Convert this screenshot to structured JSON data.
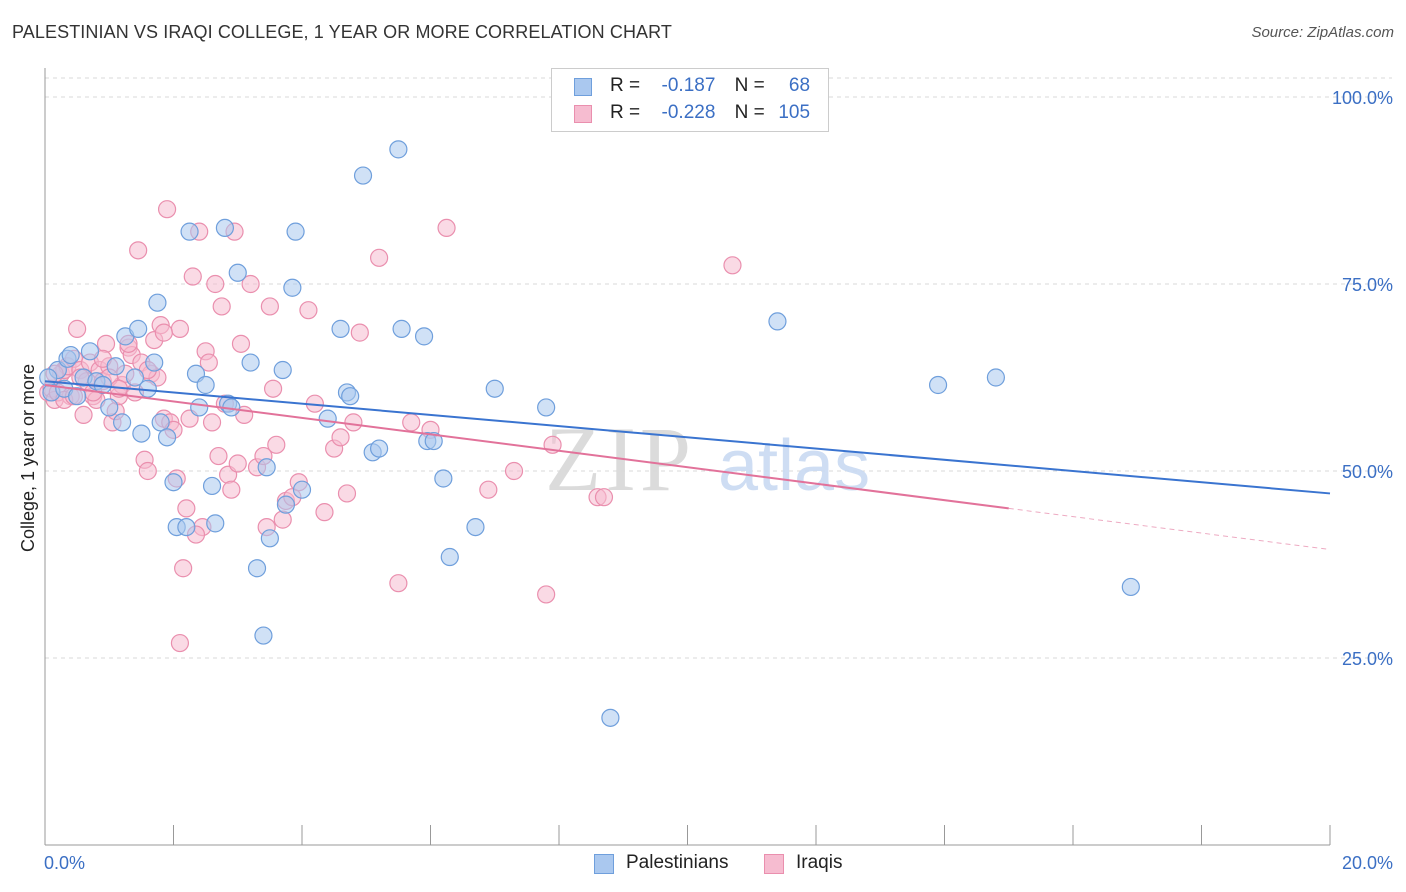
{
  "header": {
    "title": "PALESTINIAN VS IRAQI COLLEGE, 1 YEAR OR MORE CORRELATION CHART",
    "source": "Source: ZipAtlas.com"
  },
  "legend_top": {
    "rows": [
      {
        "r_label": "R =",
        "r_value": "-0.187",
        "n_label": "N =",
        "n_value": "68"
      },
      {
        "r_label": "R =",
        "r_value": "-0.228",
        "n_label": "N =",
        "n_value": "105"
      }
    ]
  },
  "legend_bottom": {
    "items": [
      {
        "label": "Palestinians"
      },
      {
        "label": "Iraqis"
      }
    ]
  },
  "watermark": {
    "part1": "ZIP",
    "part2": "atlas"
  },
  "colors": {
    "blue_fill": "#aac8ef",
    "blue_stroke": "#6f9fdc",
    "blue_line": "#3a74d0",
    "pink_fill": "#f6bcd0",
    "pink_stroke": "#ea8fae",
    "pink_line": "#e2729a",
    "tick_text": "#3b6fc4",
    "grid": "#d8d8d8"
  },
  "chart_data": {
    "type": "scatter",
    "title": "PALESTINIAN VS IRAQI COLLEGE, 1 YEAR OR MORE CORRELATION CHART",
    "xlabel": "",
    "ylabel": "College, 1 year or more",
    "xlim": [
      0,
      20
    ],
    "ylim": [
      0,
      102
    ],
    "x_tick_labels": [
      {
        "value": 0,
        "label": "0.0%"
      },
      {
        "value": 20,
        "label": "20.0%"
      }
    ],
    "y_tick_labels": [
      {
        "value": 25,
        "label": "25.0%"
      },
      {
        "value": 50,
        "label": "50.0%"
      },
      {
        "value": 75,
        "label": "75.0%"
      },
      {
        "value": 100,
        "label": "100.0%"
      }
    ],
    "grid": true,
    "legend_position": "top-center",
    "series": [
      {
        "name": "Palestinians",
        "r": -0.187,
        "n": 68,
        "trend": {
          "x0": 0,
          "y0": 62.0,
          "x1": 20,
          "y1": 47.0
        },
        "points": [
          [
            0.1,
            60.5
          ],
          [
            0.2,
            63.5
          ],
          [
            0.3,
            61.0
          ],
          [
            0.35,
            65.0
          ],
          [
            0.4,
            65.5
          ],
          [
            0.5,
            60.0
          ],
          [
            0.6,
            62.5
          ],
          [
            0.7,
            66.0
          ],
          [
            0.8,
            62.0
          ],
          [
            0.9,
            61.5
          ],
          [
            1.0,
            58.5
          ],
          [
            1.1,
            64.0
          ],
          [
            1.2,
            56.5
          ],
          [
            1.25,
            68.0
          ],
          [
            1.4,
            62.5
          ],
          [
            1.45,
            69.0
          ],
          [
            1.5,
            55.0
          ],
          [
            1.6,
            61.0
          ],
          [
            1.7,
            64.5
          ],
          [
            1.75,
            72.5
          ],
          [
            1.8,
            56.5
          ],
          [
            1.9,
            54.5
          ],
          [
            2.0,
            48.5
          ],
          [
            2.05,
            42.5
          ],
          [
            2.2,
            42.5
          ],
          [
            2.25,
            82.0
          ],
          [
            2.35,
            63.0
          ],
          [
            2.4,
            58.5
          ],
          [
            2.5,
            61.5
          ],
          [
            2.6,
            48.0
          ],
          [
            2.65,
            43.0
          ],
          [
            2.8,
            82.5
          ],
          [
            2.85,
            59.0
          ],
          [
            2.9,
            58.5
          ],
          [
            3.0,
            76.5
          ],
          [
            3.2,
            64.5
          ],
          [
            3.3,
            37.0
          ],
          [
            3.4,
            28.0
          ],
          [
            3.45,
            50.5
          ],
          [
            3.5,
            41.0
          ],
          [
            3.7,
            63.5
          ],
          [
            3.75,
            45.5
          ],
          [
            3.85,
            74.5
          ],
          [
            3.9,
            82.0
          ],
          [
            4.0,
            47.5
          ],
          [
            4.4,
            57.0
          ],
          [
            4.6,
            69.0
          ],
          [
            4.7,
            60.5
          ],
          [
            4.75,
            60.0
          ],
          [
            4.95,
            89.5
          ],
          [
            5.1,
            52.5
          ],
          [
            5.2,
            53.0
          ],
          [
            5.5,
            93.0
          ],
          [
            5.55,
            69.0
          ],
          [
            5.9,
            68.0
          ],
          [
            5.95,
            54.0
          ],
          [
            6.05,
            54.0
          ],
          [
            6.2,
            49.0
          ],
          [
            6.3,
            38.5
          ],
          [
            6.7,
            42.5
          ],
          [
            7.0,
            61.0
          ],
          [
            7.8,
            58.5
          ],
          [
            8.8,
            17.0
          ],
          [
            11.4,
            70.0
          ],
          [
            13.9,
            61.5
          ],
          [
            14.8,
            62.5
          ],
          [
            16.9,
            34.5
          ],
          [
            0.05,
            62.5
          ]
        ]
      },
      {
        "name": "Iraqis",
        "r": -0.228,
        "n": 105,
        "trend": {
          "x0": 0,
          "y0": 61.5,
          "x1": 15.0,
          "y1": 45.0
        },
        "trend_extension": {
          "x0": 15.0,
          "y0": 45.0,
          "x1": 20,
          "y1": 39.5
        },
        "points": [
          [
            0.05,
            60.5
          ],
          [
            0.1,
            61.0
          ],
          [
            0.15,
            59.5
          ],
          [
            0.2,
            60.5
          ],
          [
            0.25,
            63.0
          ],
          [
            0.3,
            63.5
          ],
          [
            0.35,
            64.0
          ],
          [
            0.4,
            60.0
          ],
          [
            0.45,
            65.0
          ],
          [
            0.5,
            69.0
          ],
          [
            0.55,
            63.5
          ],
          [
            0.6,
            57.5
          ],
          [
            0.65,
            62.0
          ],
          [
            0.7,
            64.5
          ],
          [
            0.75,
            60.0
          ],
          [
            0.8,
            59.5
          ],
          [
            0.85,
            63.5
          ],
          [
            0.9,
            62.0
          ],
          [
            0.95,
            67.0
          ],
          [
            1.0,
            64.0
          ],
          [
            1.05,
            56.5
          ],
          [
            1.1,
            58.0
          ],
          [
            1.15,
            60.0
          ],
          [
            1.2,
            61.5
          ],
          [
            1.25,
            63.0
          ],
          [
            1.3,
            66.5
          ],
          [
            1.35,
            65.5
          ],
          [
            1.4,
            60.5
          ],
          [
            1.45,
            79.5
          ],
          [
            1.5,
            64.5
          ],
          [
            1.55,
            51.5
          ],
          [
            1.6,
            50.0
          ],
          [
            1.65,
            63.0
          ],
          [
            1.7,
            67.5
          ],
          [
            1.75,
            62.5
          ],
          [
            1.8,
            69.5
          ],
          [
            1.85,
            57.0
          ],
          [
            1.9,
            85.0
          ],
          [
            1.95,
            56.5
          ],
          [
            2.0,
            55.5
          ],
          [
            2.05,
            49.0
          ],
          [
            2.1,
            69.0
          ],
          [
            2.15,
            37.0
          ],
          [
            2.2,
            45.0
          ],
          [
            2.25,
            57.0
          ],
          [
            2.3,
            76.0
          ],
          [
            2.4,
            82.0
          ],
          [
            2.45,
            42.5
          ],
          [
            2.5,
            66.0
          ],
          [
            2.55,
            64.5
          ],
          [
            2.6,
            56.5
          ],
          [
            2.65,
            75.0
          ],
          [
            2.7,
            52.0
          ],
          [
            2.75,
            72.0
          ],
          [
            2.85,
            49.5
          ],
          [
            2.9,
            47.5
          ],
          [
            2.95,
            82.0
          ],
          [
            3.0,
            51.0
          ],
          [
            3.05,
            67.0
          ],
          [
            3.1,
            57.5
          ],
          [
            3.2,
            75.0
          ],
          [
            3.3,
            50.5
          ],
          [
            3.4,
            52.0
          ],
          [
            3.5,
            72.0
          ],
          [
            3.55,
            61.0
          ],
          [
            3.6,
            53.5
          ],
          [
            3.7,
            43.5
          ],
          [
            3.75,
            46.0
          ],
          [
            3.85,
            46.5
          ],
          [
            3.95,
            48.5
          ],
          [
            4.1,
            71.5
          ],
          [
            4.2,
            59.0
          ],
          [
            4.35,
            44.5
          ],
          [
            4.5,
            53.0
          ],
          [
            4.6,
            54.5
          ],
          [
            4.7,
            47.0
          ],
          [
            4.8,
            56.5
          ],
          [
            4.9,
            68.5
          ],
          [
            5.2,
            78.5
          ],
          [
            5.5,
            35.0
          ],
          [
            5.7,
            56.5
          ],
          [
            6.0,
            55.5
          ],
          [
            6.25,
            82.5
          ],
          [
            6.9,
            47.5
          ],
          [
            7.3,
            50.0
          ],
          [
            7.8,
            33.5
          ],
          [
            7.9,
            53.5
          ],
          [
            8.6,
            46.5
          ],
          [
            8.7,
            46.5
          ],
          [
            10.7,
            77.5
          ],
          [
            1.3,
            67.0
          ],
          [
            2.1,
            27.0
          ],
          [
            0.3,
            59.5
          ],
          [
            0.75,
            60.5
          ],
          [
            1.6,
            63.5
          ],
          [
            2.35,
            41.5
          ],
          [
            0.55,
            62.5
          ],
          [
            1.0,
            62.5
          ],
          [
            1.85,
            68.5
          ],
          [
            0.45,
            60.0
          ],
          [
            2.8,
            59.0
          ],
          [
            1.15,
            61.0
          ],
          [
            3.45,
            42.5
          ],
          [
            0.9,
            65.0
          ],
          [
            0.15,
            63.0
          ]
        ]
      }
    ]
  }
}
